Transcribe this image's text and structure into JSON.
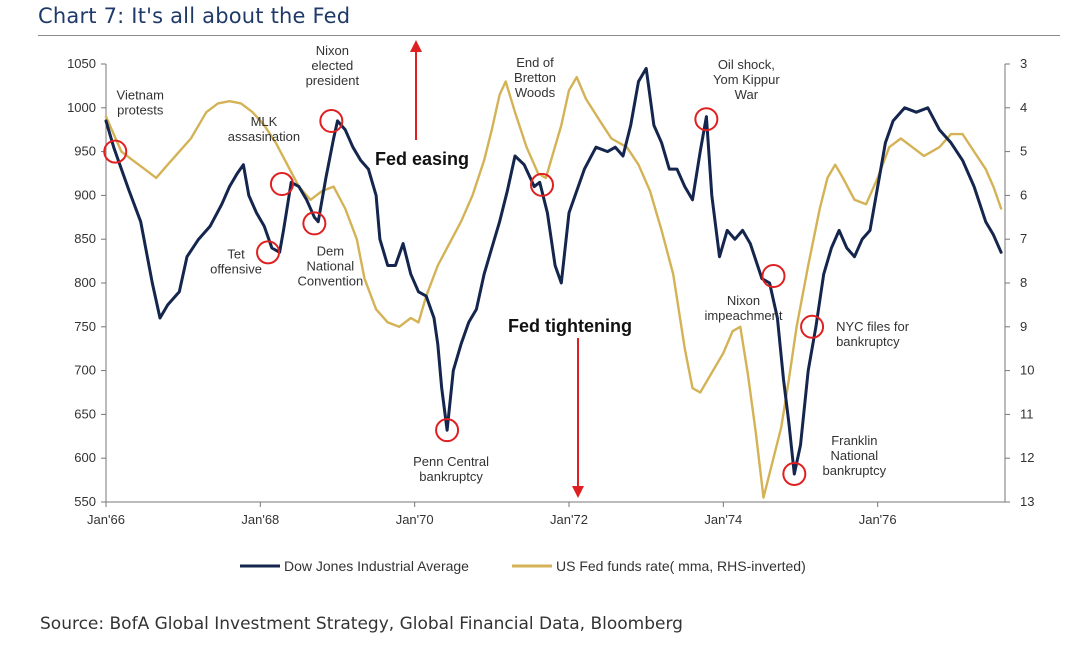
{
  "header": {
    "title": "Chart 7: It's all about the Fed"
  },
  "footer": {
    "source": "Source: BofA Global Investment Strategy, Global Financial Data, Bloomberg"
  },
  "chart_data": {
    "type": "line",
    "title": "Chart 7: It's all about the Fed",
    "x_range": [
      1966.0,
      1977.65
    ],
    "x_ticks": [
      {
        "value": 1966,
        "label": "Jan'66"
      },
      {
        "value": 1968,
        "label": "Jan'68"
      },
      {
        "value": 1970,
        "label": "Jan'70"
      },
      {
        "value": 1972,
        "label": "Jan'72"
      },
      {
        "value": 1974,
        "label": "Jan'74"
      },
      {
        "value": 1976,
        "label": "Jan'76"
      }
    ],
    "y_left": {
      "range": [
        550,
        1050
      ],
      "ticks": [
        550,
        600,
        650,
        700,
        750,
        800,
        850,
        900,
        950,
        1000,
        1050
      ]
    },
    "y_right": {
      "range": [
        3,
        13
      ],
      "inverted": true,
      "ticks": [
        3,
        4,
        5,
        6,
        7,
        8,
        9,
        10,
        11,
        12,
        13
      ]
    },
    "series": [
      {
        "name": "Dow Jones Industrial Average",
        "axis": "left",
        "color": "#14264d",
        "points": [
          [
            1966.0,
            985
          ],
          [
            1966.1,
            955
          ],
          [
            1966.2,
            930
          ],
          [
            1966.3,
            905
          ],
          [
            1966.45,
            870
          ],
          [
            1966.6,
            800
          ],
          [
            1966.7,
            760
          ],
          [
            1966.8,
            775
          ],
          [
            1966.95,
            790
          ],
          [
            1967.05,
            830
          ],
          [
            1967.2,
            850
          ],
          [
            1967.35,
            865
          ],
          [
            1967.5,
            890
          ],
          [
            1967.6,
            910
          ],
          [
            1967.7,
            925
          ],
          [
            1967.78,
            935
          ],
          [
            1967.85,
            900
          ],
          [
            1967.95,
            880
          ],
          [
            1968.05,
            865
          ],
          [
            1968.15,
            840
          ],
          [
            1968.25,
            835
          ],
          [
            1968.3,
            860
          ],
          [
            1968.4,
            915
          ],
          [
            1968.5,
            910
          ],
          [
            1968.6,
            895
          ],
          [
            1968.7,
            875
          ],
          [
            1968.75,
            870
          ],
          [
            1968.85,
            920
          ],
          [
            1968.95,
            965
          ],
          [
            1969.0,
            985
          ],
          [
            1969.1,
            975
          ],
          [
            1969.2,
            955
          ],
          [
            1969.3,
            940
          ],
          [
            1969.4,
            930
          ],
          [
            1969.5,
            900
          ],
          [
            1969.55,
            850
          ],
          [
            1969.65,
            820
          ],
          [
            1969.75,
            820
          ],
          [
            1969.85,
            845
          ],
          [
            1969.95,
            810
          ],
          [
            1970.05,
            790
          ],
          [
            1970.15,
            785
          ],
          [
            1970.25,
            760
          ],
          [
            1970.3,
            730
          ],
          [
            1970.35,
            680
          ],
          [
            1970.42,
            632
          ],
          [
            1970.5,
            700
          ],
          [
            1970.6,
            730
          ],
          [
            1970.7,
            755
          ],
          [
            1970.8,
            770
          ],
          [
            1970.9,
            810
          ],
          [
            1971.0,
            840
          ],
          [
            1971.1,
            870
          ],
          [
            1971.2,
            905
          ],
          [
            1971.3,
            945
          ],
          [
            1971.42,
            935
          ],
          [
            1971.55,
            910
          ],
          [
            1971.62,
            915
          ],
          [
            1971.72,
            880
          ],
          [
            1971.82,
            820
          ],
          [
            1971.9,
            800
          ],
          [
            1972.0,
            880
          ],
          [
            1972.1,
            905
          ],
          [
            1972.2,
            930
          ],
          [
            1972.35,
            955
          ],
          [
            1972.5,
            950
          ],
          [
            1972.6,
            955
          ],
          [
            1972.7,
            945
          ],
          [
            1972.8,
            980
          ],
          [
            1972.9,
            1030
          ],
          [
            1973.0,
            1045
          ],
          [
            1973.1,
            980
          ],
          [
            1973.2,
            960
          ],
          [
            1973.3,
            930
          ],
          [
            1973.4,
            930
          ],
          [
            1973.5,
            910
          ],
          [
            1973.6,
            895
          ],
          [
            1973.7,
            950
          ],
          [
            1973.78,
            990
          ],
          [
            1973.85,
            900
          ],
          [
            1973.95,
            830
          ],
          [
            1974.05,
            860
          ],
          [
            1974.15,
            850
          ],
          [
            1974.25,
            860
          ],
          [
            1974.35,
            845
          ],
          [
            1974.5,
            805
          ],
          [
            1974.6,
            800
          ],
          [
            1974.7,
            760
          ],
          [
            1974.78,
            690
          ],
          [
            1974.85,
            640
          ],
          [
            1974.92,
            582
          ],
          [
            1975.0,
            615
          ],
          [
            1975.1,
            700
          ],
          [
            1975.2,
            750
          ],
          [
            1975.3,
            810
          ],
          [
            1975.4,
            840
          ],
          [
            1975.5,
            860
          ],
          [
            1975.6,
            840
          ],
          [
            1975.7,
            830
          ],
          [
            1975.8,
            850
          ],
          [
            1975.9,
            860
          ],
          [
            1976.0,
            910
          ],
          [
            1976.1,
            960
          ],
          [
            1976.2,
            985
          ],
          [
            1976.35,
            1000
          ],
          [
            1976.5,
            995
          ],
          [
            1976.65,
            1000
          ],
          [
            1976.8,
            975
          ],
          [
            1976.95,
            960
          ],
          [
            1977.1,
            940
          ],
          [
            1977.25,
            910
          ],
          [
            1977.4,
            870
          ],
          [
            1977.5,
            855
          ],
          [
            1977.6,
            835
          ]
        ]
      },
      {
        "name": "US Fed funds rate( mma, RHS-inverted)",
        "axis": "right",
        "color": "#d4b256",
        "points": [
          [
            1966.0,
            4.2
          ],
          [
            1966.1,
            4.6
          ],
          [
            1966.2,
            5.0
          ],
          [
            1966.35,
            5.2
          ],
          [
            1966.5,
            5.4
          ],
          [
            1966.65,
            5.6
          ],
          [
            1966.8,
            5.3
          ],
          [
            1966.95,
            5.0
          ],
          [
            1967.1,
            4.7
          ],
          [
            1967.3,
            4.1
          ],
          [
            1967.45,
            3.9
          ],
          [
            1967.6,
            3.85
          ],
          [
            1967.75,
            3.9
          ],
          [
            1967.9,
            4.1
          ],
          [
            1968.05,
            4.4
          ],
          [
            1968.2,
            4.8
          ],
          [
            1968.35,
            5.3
          ],
          [
            1968.5,
            5.8
          ],
          [
            1968.65,
            6.1
          ],
          [
            1968.8,
            5.9
          ],
          [
            1968.95,
            5.8
          ],
          [
            1969.1,
            6.3
          ],
          [
            1969.25,
            7.0
          ],
          [
            1969.35,
            7.9
          ],
          [
            1969.5,
            8.6
          ],
          [
            1969.65,
            8.9
          ],
          [
            1969.8,
            9.0
          ],
          [
            1969.95,
            8.8
          ],
          [
            1970.05,
            8.9
          ],
          [
            1970.15,
            8.3
          ],
          [
            1970.3,
            7.6
          ],
          [
            1970.45,
            7.1
          ],
          [
            1970.6,
            6.6
          ],
          [
            1970.75,
            6.0
          ],
          [
            1970.9,
            5.2
          ],
          [
            1971.0,
            4.5
          ],
          [
            1971.1,
            3.7
          ],
          [
            1971.18,
            3.4
          ],
          [
            1971.3,
            4.1
          ],
          [
            1971.45,
            4.9
          ],
          [
            1971.6,
            5.5
          ],
          [
            1971.7,
            5.6
          ],
          [
            1971.8,
            5.0
          ],
          [
            1971.9,
            4.4
          ],
          [
            1972.0,
            3.6
          ],
          [
            1972.1,
            3.3
          ],
          [
            1972.22,
            3.8
          ],
          [
            1972.4,
            4.3
          ],
          [
            1972.55,
            4.7
          ],
          [
            1972.75,
            4.9
          ],
          [
            1972.9,
            5.3
          ],
          [
            1973.05,
            5.9
          ],
          [
            1973.2,
            6.8
          ],
          [
            1973.35,
            7.8
          ],
          [
            1973.5,
            9.5
          ],
          [
            1973.6,
            10.4
          ],
          [
            1973.7,
            10.5
          ],
          [
            1973.8,
            10.2
          ],
          [
            1973.9,
            9.9
          ],
          [
            1974.0,
            9.6
          ],
          [
            1974.12,
            9.1
          ],
          [
            1974.22,
            9.0
          ],
          [
            1974.32,
            10.1
          ],
          [
            1974.42,
            11.4
          ],
          [
            1974.52,
            12.9
          ],
          [
            1974.62,
            12.2
          ],
          [
            1974.75,
            11.3
          ],
          [
            1974.85,
            10.2
          ],
          [
            1974.95,
            9.0
          ],
          [
            1975.1,
            7.6
          ],
          [
            1975.25,
            6.3
          ],
          [
            1975.35,
            5.6
          ],
          [
            1975.45,
            5.3
          ],
          [
            1975.55,
            5.6
          ],
          [
            1975.7,
            6.1
          ],
          [
            1975.85,
            6.2
          ],
          [
            1976.0,
            5.6
          ],
          [
            1976.15,
            4.9
          ],
          [
            1976.3,
            4.7
          ],
          [
            1976.45,
            4.9
          ],
          [
            1976.6,
            5.1
          ],
          [
            1976.8,
            4.9
          ],
          [
            1976.95,
            4.6
          ],
          [
            1977.1,
            4.6
          ],
          [
            1977.25,
            5.0
          ],
          [
            1977.4,
            5.4
          ],
          [
            1977.5,
            5.8
          ],
          [
            1977.6,
            6.3
          ]
        ]
      }
    ],
    "annotations": [
      {
        "lines": [
          "Vietnam",
          "protests"
        ],
        "x": 1966.12,
        "y": 950
      },
      {
        "lines": [
          "MLK",
          "assasination"
        ],
        "x": 1968.28,
        "y": 913
      },
      {
        "lines": [
          "Nixon",
          "elected",
          "president"
        ],
        "x": 1968.92,
        "y": 985
      },
      {
        "lines": [
          "Tet",
          "offensive"
        ],
        "x": 1968.1,
        "y": 835
      },
      {
        "lines": [
          "Dem",
          "National",
          "Convention"
        ],
        "x": 1968.7,
        "y": 868
      },
      {
        "lines": [
          "Penn Central",
          "bankruptcy"
        ],
        "x": 1970.42,
        "y": 632
      },
      {
        "lines": [
          "End of",
          "Bretton",
          "Woods"
        ],
        "x": 1971.65,
        "y": 912
      },
      {
        "lines": [
          "Oil shock,",
          "Yom Kippur",
          "War"
        ],
        "x": 1973.78,
        "y": 987
      },
      {
        "lines": [
          "Nixon",
          "impeachment"
        ],
        "x": 1974.65,
        "y": 808
      },
      {
        "lines": [
          "NYC files for",
          "bankruptcy"
        ],
        "x": 1975.15,
        "y": 750
      },
      {
        "lines": [
          "Franklin",
          "National",
          "bankruptcy"
        ],
        "x": 1974.92,
        "y": 582
      }
    ],
    "labels": {
      "fed_easing": "Fed easing",
      "fed_tightening": "Fed tightening"
    },
    "legend": [
      {
        "name": "Dow Jones Industrial Average",
        "color": "#14264d"
      },
      {
        "name": "US Fed funds rate( mma, RHS-inverted)",
        "color": "#d4b256"
      }
    ]
  }
}
